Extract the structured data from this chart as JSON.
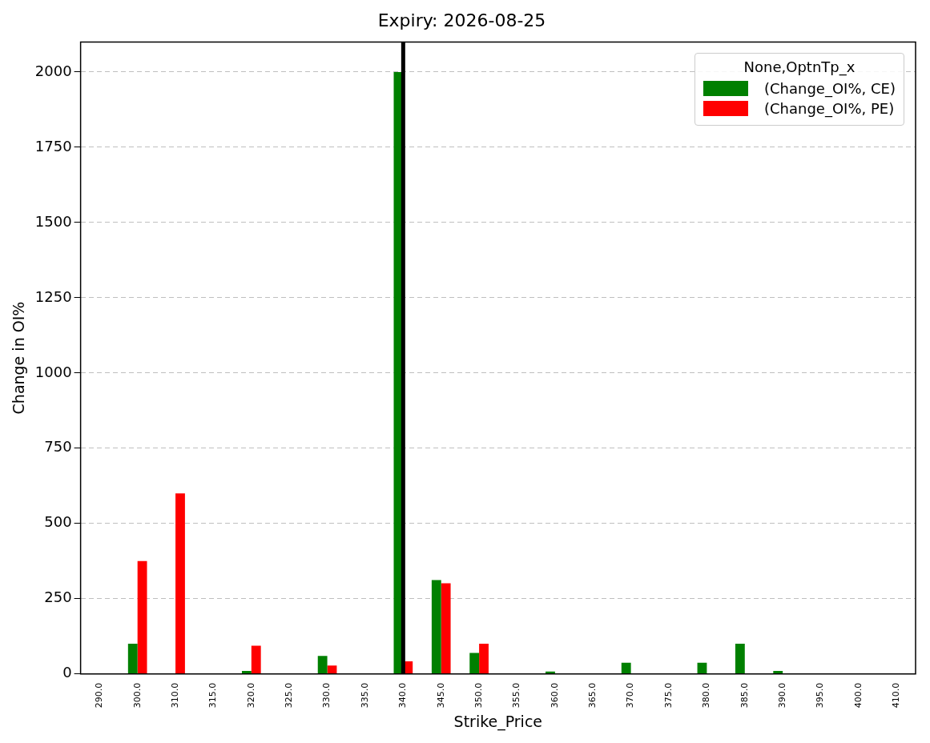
{
  "chart_data": {
    "type": "bar",
    "title": "Expiry: 2026-08-25",
    "xlabel": "Strike_Price",
    "ylabel": "Change in OI%",
    "legend_title": "None,OptnTp_x",
    "categories": [
      "290.0",
      "300.0",
      "310.0",
      "315.0",
      "320.0",
      "325.0",
      "330.0",
      "335.0",
      "340.0",
      "345.0",
      "350.0",
      "355.0",
      "360.0",
      "365.0",
      "370.0",
      "375.0",
      "380.0",
      "385.0",
      "390.0",
      "395.0",
      "400.0",
      "410.0"
    ],
    "series": [
      {
        "name": "(Change_OI%, CE)",
        "color": "#008000",
        "values": [
          0,
          100,
          0,
          0,
          10,
          0,
          60,
          0,
          2000,
          312,
          70,
          0,
          8,
          0,
          37,
          0,
          37,
          100,
          10,
          0,
          0,
          0
        ]
      },
      {
        "name": "(Change_OI%, PE)",
        "color": "#ff0000",
        "values": [
          0,
          375,
          600,
          0,
          94,
          0,
          28,
          0,
          42,
          301,
          100,
          0,
          0,
          0,
          0,
          0,
          0,
          0,
          0,
          0,
          0,
          0
        ]
      }
    ],
    "ylim": [
      0,
      2100
    ],
    "yticks": [
      0,
      250,
      500,
      750,
      1000,
      1250,
      1500,
      1750,
      2000
    ],
    "grid": "y",
    "legend": "top right",
    "ref_lines": [
      {
        "axis": "x",
        "value": "340.0",
        "color": "#000000"
      }
    ]
  }
}
